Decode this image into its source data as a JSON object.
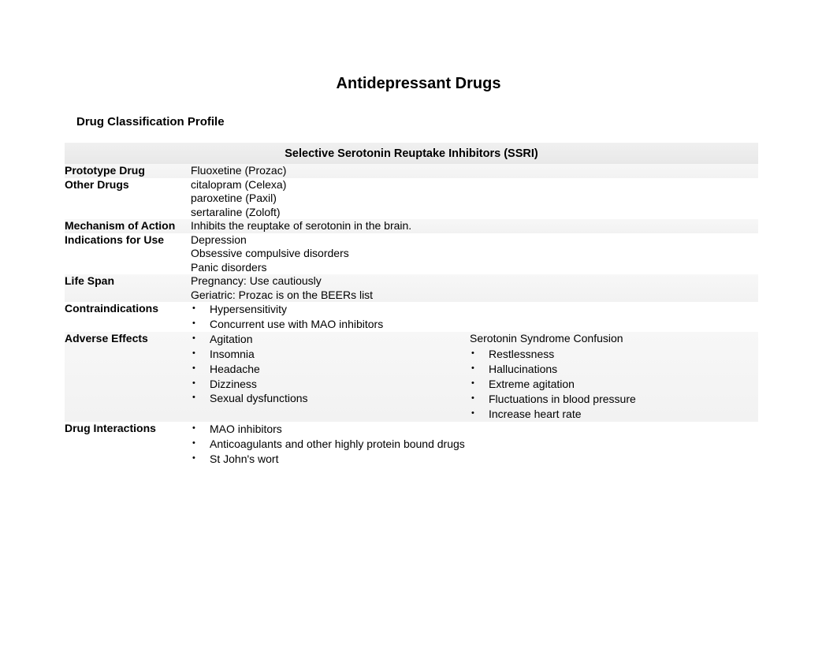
{
  "page_title": "Antidepressant Drugs",
  "section_title": "Drug Classification Profile",
  "class_header": "Selective Serotonin Reuptake Inhibitors (SSRI)",
  "rows": {
    "prototype": {
      "label": "Prototype Drug",
      "value": "Fluoxetine (Prozac)"
    },
    "other": {
      "label": "Other Drugs",
      "values": [
        "citalopram (Celexa)",
        "paroxetine (Paxil)",
        "sertaraline (Zoloft)"
      ]
    },
    "mechanism": {
      "label": "Mechanism of Action",
      "value": "Inhibits the reuptake of serotonin in the brain."
    },
    "indications": {
      "label": "Indications for Use",
      "values": [
        "Depression",
        "Obsessive compulsive disorders",
        "Panic disorders"
      ]
    },
    "lifespan": {
      "label": "Life Span",
      "values": [
        "Pregnancy:  Use cautiously",
        "Geriatric:  Prozac is on the BEERs list"
      ]
    },
    "contraindications": {
      "label": "Contraindications",
      "bullets": [
        "Hypersensitivity",
        "Concurrent use with MAO inhibitors"
      ]
    },
    "adverse": {
      "label": "Adverse Effects",
      "col1_bullets": [
        "Agitation",
        "Insomnia",
        "Headache",
        "Dizziness",
        "Sexual dysfunctions"
      ],
      "col2_title": "Serotonin Syndrome Confusion",
      "col2_bullets": [
        "Restlessness",
        "Hallucinations",
        "Extreme agitation",
        "Fluctuations in blood pressure",
        "Increase heart rate"
      ]
    },
    "interactions": {
      "label": "Drug Interactions",
      "bullets": [
        "MAO inhibitors",
        "Anticoagulants and other highly protein bound drugs",
        "St John's wort"
      ]
    }
  }
}
